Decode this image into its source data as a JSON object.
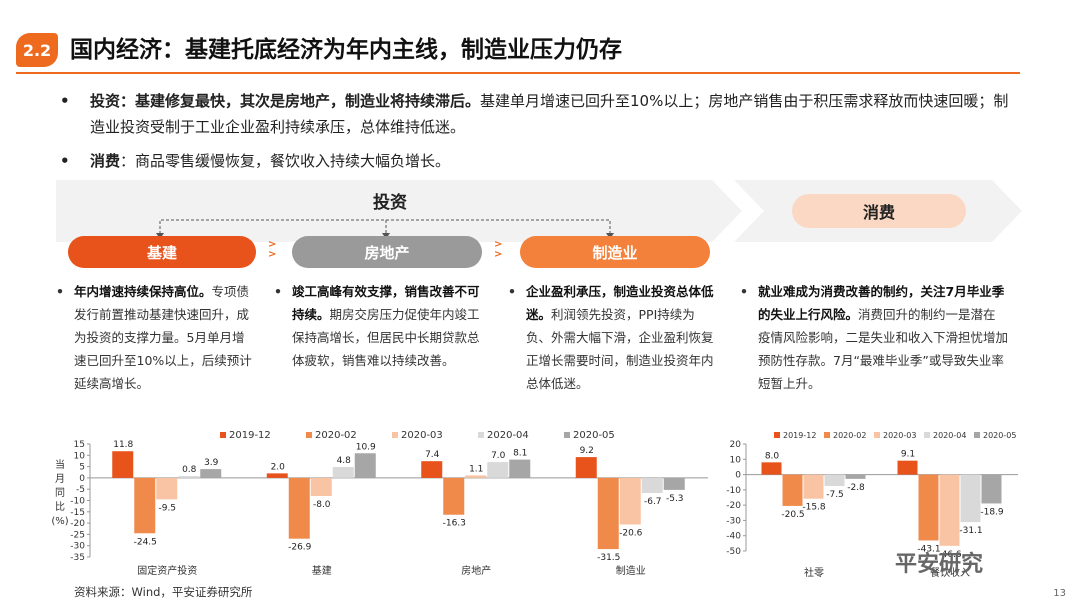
{
  "section": {
    "number": "2.2",
    "title": "国内经济：基建托底经济为年内主线，制造业压力仍存"
  },
  "bullets": [
    {
      "bold": "投资：基建修复最快，其次是房地产，制造业将持续滞后。",
      "text": "基建单月增速已回升至10%以上；房地产销售由于积压需求释放而快速回暖；制造业投资受制于工业企业盈利持续承压，总体维持低迷。"
    },
    {
      "bold": "消费",
      "text": "：商品零售缓慢恢复，餐饮收入持续大幅负增长。"
    }
  ],
  "banner": {
    "investment_label": "投资",
    "consumption_label": "消费"
  },
  "pills": [
    "基建",
    "房地产",
    "制造业"
  ],
  "columns": [
    {
      "bold": "年内增速持续保持高位。",
      "text": "专项债发行前置推动基建快速回升，成为投资的支撑力量。5月单月增速已回升至10%以上，后续预计延续高增长。"
    },
    {
      "bold": "竣工高峰有效支撑，销售改善不可持续。",
      "text": "期房交房压力促使年内竣工保持高增长，但居民中长期贷款总体疲软，销售难以持续改善。"
    },
    {
      "bold": "企业盈利承压，制造业投资总体低迷。",
      "text": "利润领先投资，PPI持续为负、外需大幅下滑，企业盈利恢复正增长需要时间，制造业投资年内总体低迷。"
    },
    {
      "bold": "就业难成为消费改善的制约，关注7月毕业季的失业上行风险。",
      "text": "消费回升的制约一是潜在疫情风险影响，二是失业和收入下滑担忧增加预防性存款。7月“最难毕业季”或导致失业率短暂上升。"
    }
  ],
  "colors": {
    "accent": "#ee6a1e",
    "s1": "#e8521b",
    "s2": "#f08a4b",
    "s3": "#f8c4a3",
    "s4": "#d9d9d9",
    "s5": "#a6a6a6",
    "gray_pill": "#9a9a9a",
    "mfg_pill": "#f3813c"
  },
  "chart_data": [
    {
      "type": "bar",
      "ylabel": "当月同比(%)",
      "ylim": [
        -35,
        15
      ],
      "yticks": [
        15,
        10,
        5,
        0,
        -5,
        -10,
        -15,
        -20,
        -25,
        -30,
        -35
      ],
      "categories": [
        "固定资产投资",
        "基建",
        "房地产",
        "制造业"
      ],
      "series": [
        {
          "name": "2019-12",
          "values": [
            11.8,
            2.0,
            7.4,
            9.2
          ]
        },
        {
          "name": "2020-02",
          "values": [
            -24.5,
            -26.9,
            -16.3,
            -31.5
          ]
        },
        {
          "name": "2020-03",
          "values": [
            -9.5,
            -8.0,
            1.1,
            -20.6
          ]
        },
        {
          "name": "2020-04",
          "values": [
            0.8,
            4.8,
            7.0,
            -6.7
          ]
        },
        {
          "name": "2020-05",
          "values": [
            3.9,
            10.9,
            8.1,
            -5.3
          ]
        }
      ]
    },
    {
      "type": "bar",
      "ylim": [
        -50,
        20
      ],
      "yticks": [
        20,
        10,
        0,
        -10,
        -20,
        -30,
        -40,
        -50
      ],
      "categories": [
        "社零",
        "餐饮收入"
      ],
      "series": [
        {
          "name": "2019-12",
          "values": [
            8.0,
            9.1
          ]
        },
        {
          "name": "2020-02",
          "values": [
            -20.5,
            -43.1
          ]
        },
        {
          "name": "2020-03",
          "values": [
            -15.8,
            -46.6
          ]
        },
        {
          "name": "2020-04",
          "values": [
            -7.5,
            -31.1
          ]
        },
        {
          "name": "2020-05",
          "values": [
            -2.8,
            -18.9
          ]
        }
      ]
    }
  ],
  "footer": {
    "source": "资料来源：Wind，平安证券研究所",
    "page": "13",
    "watermark": "平安研究"
  }
}
